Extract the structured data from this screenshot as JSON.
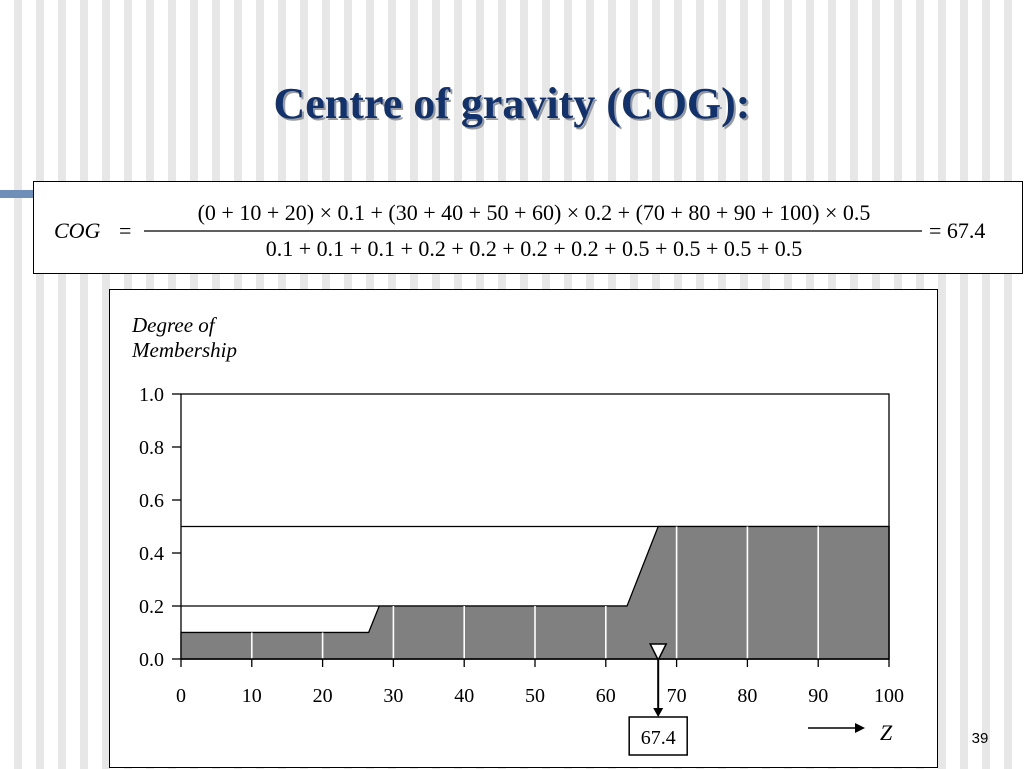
{
  "slide": {
    "title": "Centre of gravity (COG):",
    "number": "39"
  },
  "formula": {
    "lhs": "COG",
    "equals": "=",
    "numerator": "(0 + 10 + 20) × 0.1 + (30 + 40 + 50 + 60) × 0.2 + (70 + 80 + 90 + 100) × 0.5",
    "denominator": "0.1 + 0.1 + 0.1 + 0.2 + 0.2 + 0.2 + 0.2 + 0.5 + 0.5 + 0.5 + 0.5",
    "result": "= 67.4"
  },
  "chart_data": {
    "type": "area",
    "ylabel_lines": [
      "Degree of",
      "Membership"
    ],
    "xlabel": "Z",
    "xlim": [
      0,
      100
    ],
    "ylim": [
      0,
      1
    ],
    "x_ticks": [
      0,
      10,
      20,
      30,
      40,
      50,
      60,
      70,
      80,
      90,
      100
    ],
    "x_tick_labels": [
      "0",
      "10",
      "20",
      "30",
      "40",
      "50",
      "60",
      "70",
      "80",
      "90",
      "100"
    ],
    "y_ticks": [
      0,
      0.2,
      0.4,
      0.6,
      0.8,
      1.0
    ],
    "y_tick_labels": [
      "0.0",
      "0.2",
      "0.4",
      "0.6",
      "0.8",
      "1.0"
    ],
    "aggregated_membership": {
      "x": [
        0,
        26.5,
        28,
        63,
        67.4,
        100
      ],
      "y": [
        0.1,
        0.1,
        0.2,
        0.2,
        0.5,
        0.5
      ]
    },
    "clip_levels": [
      0.1,
      0.2,
      0.5
    ],
    "sample_points": [
      {
        "x": 0,
        "mu": 0.1
      },
      {
        "x": 10,
        "mu": 0.1
      },
      {
        "x": 20,
        "mu": 0.1
      },
      {
        "x": 30,
        "mu": 0.2
      },
      {
        "x": 40,
        "mu": 0.2
      },
      {
        "x": 50,
        "mu": 0.2
      },
      {
        "x": 60,
        "mu": 0.2
      },
      {
        "x": 70,
        "mu": 0.5
      },
      {
        "x": 80,
        "mu": 0.5
      },
      {
        "x": 90,
        "mu": 0.5
      },
      {
        "x": 100,
        "mu": 0.5
      }
    ],
    "cog_value": 67.4,
    "cog_label": "67.4",
    "colors": {
      "fill": "#808080",
      "sample_lines": "#ffffff",
      "axis": "#000000"
    }
  }
}
